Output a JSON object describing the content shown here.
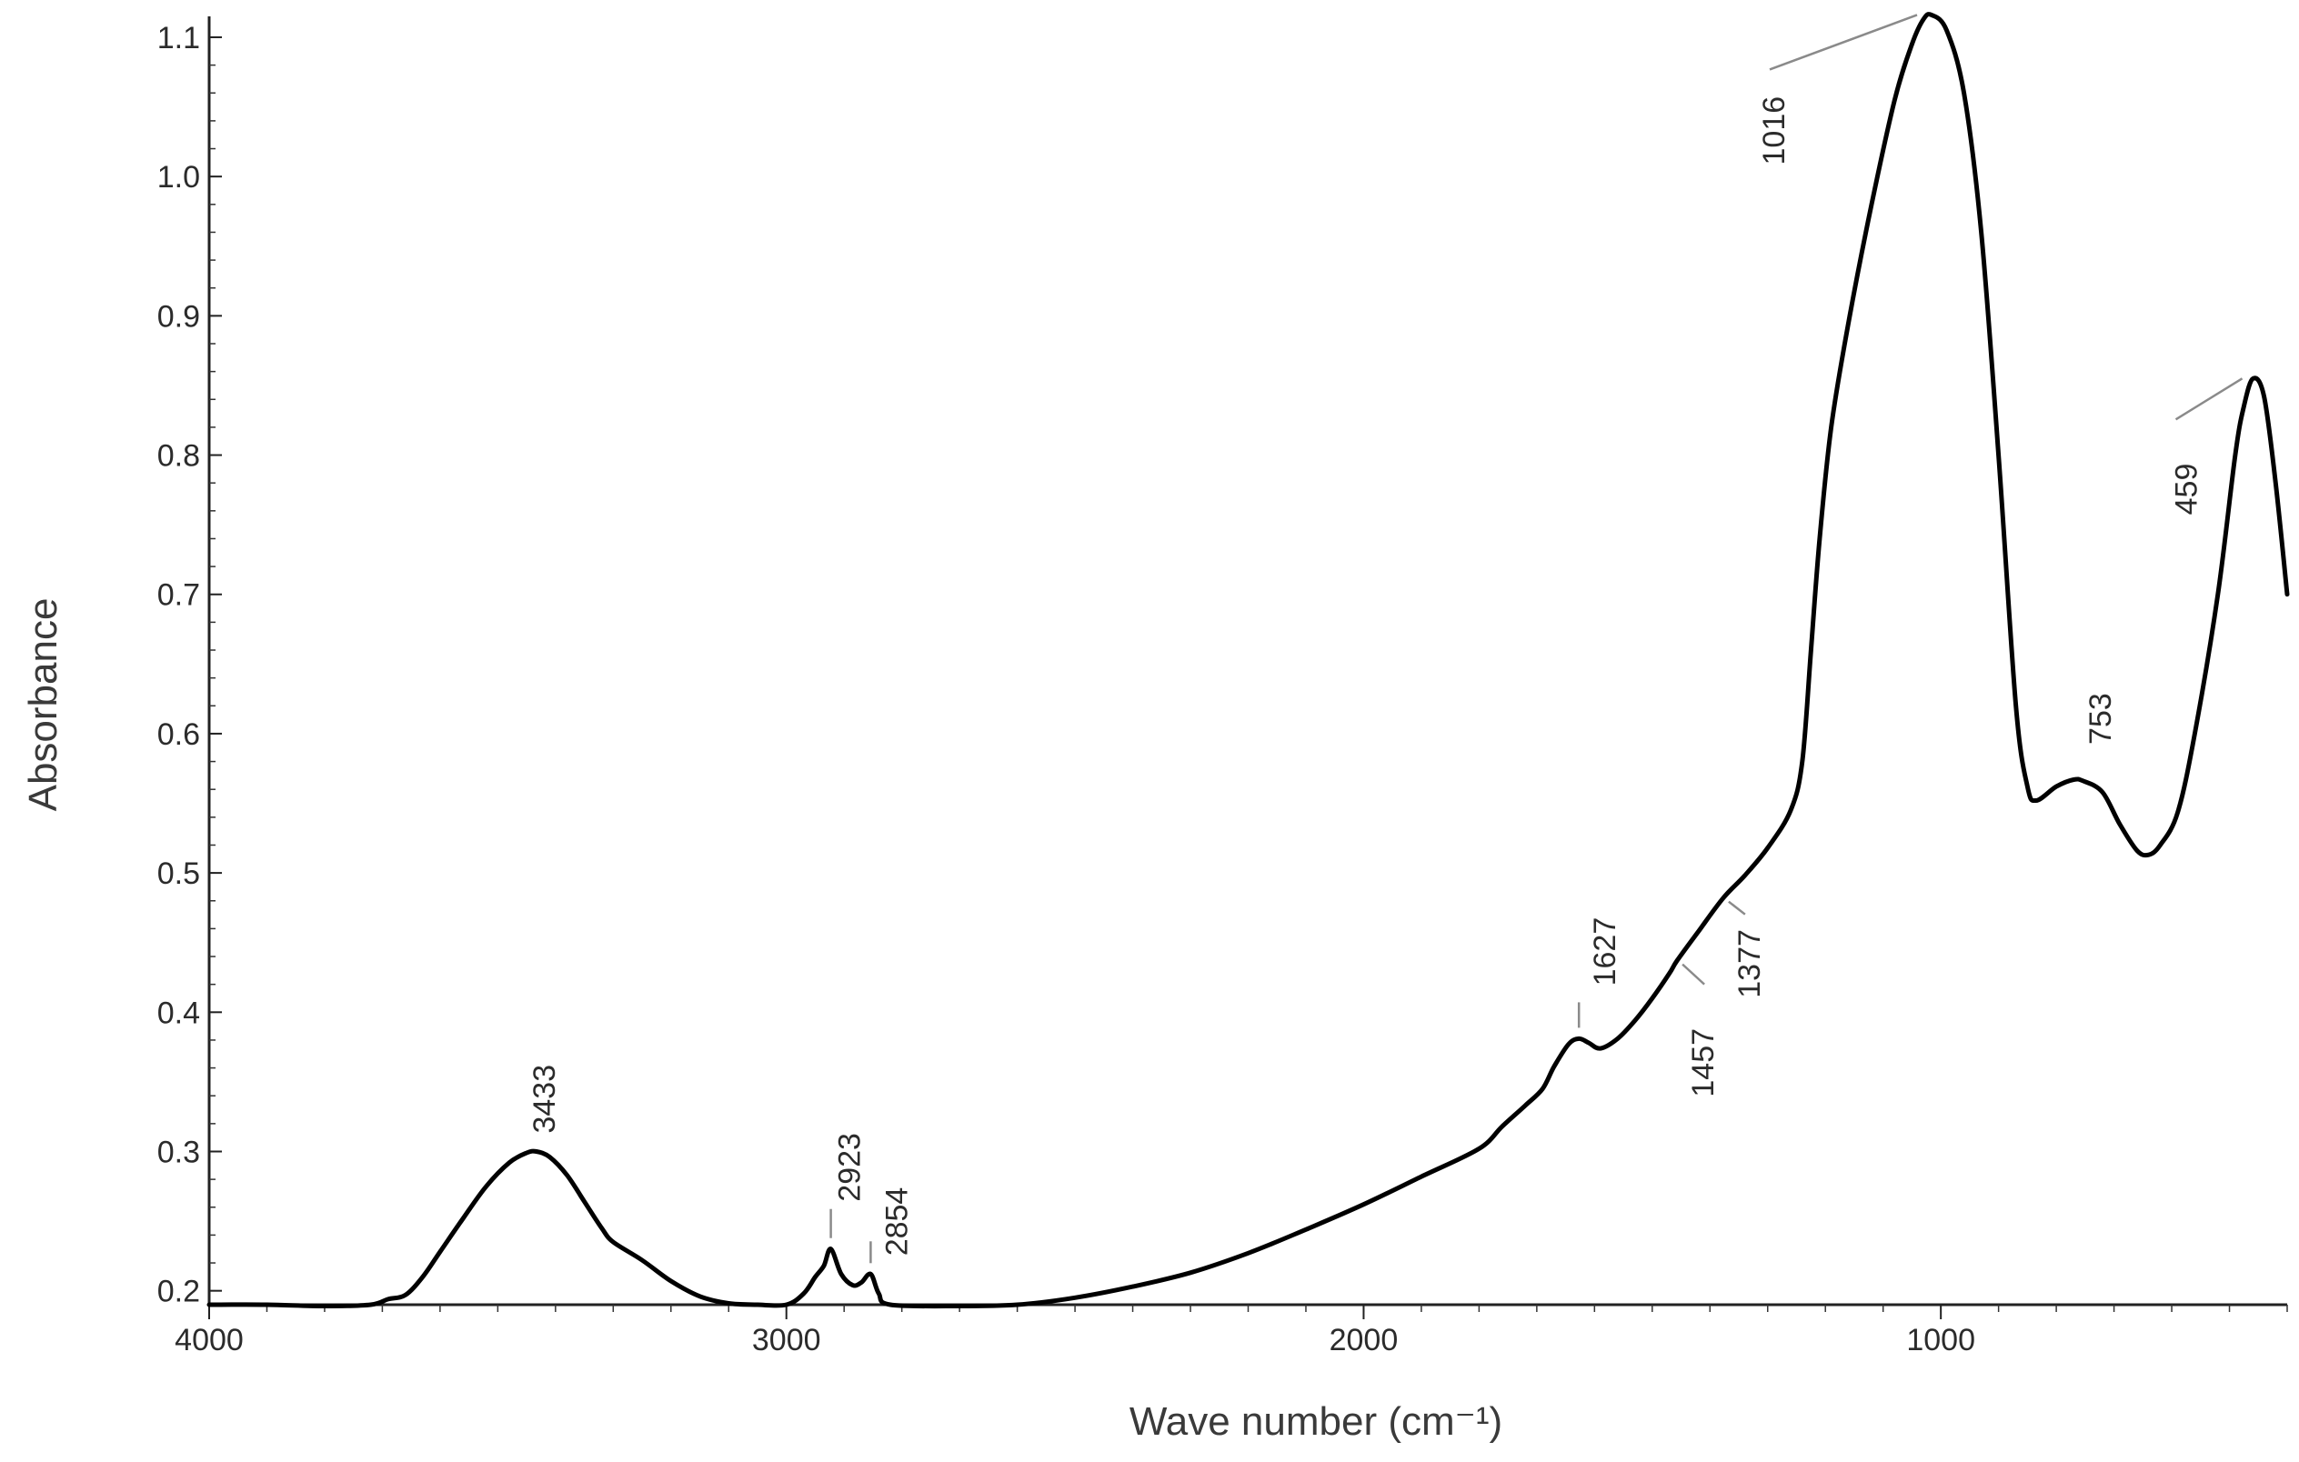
{
  "chart_data": {
    "type": "line",
    "title": "",
    "xlabel": "Wave number (cm⁻¹)",
    "ylabel": "Absorbance",
    "xlim": [
      4000,
      400
    ],
    "ylim": [
      0.19,
      1.115
    ],
    "x_reversed": true,
    "grid": false,
    "legend": "none",
    "x_ticks": [
      4000,
      3000,
      2000,
      1000
    ],
    "x_tick_labels": [
      "4000",
      "3000",
      "2000",
      "1000"
    ],
    "y_ticks": [
      0.2,
      0.3,
      0.4,
      0.5,
      0.6,
      0.7,
      0.8,
      0.9,
      1.0,
      1.1
    ],
    "y_tick_labels": [
      "0.2",
      "0.3",
      "0.4",
      "0.5",
      "0.6",
      "0.7",
      "0.8",
      "0.9",
      "1.0",
      "1.1"
    ],
    "series": [
      {
        "color": "#000000",
        "points": [
          [
            4000,
            0.19
          ],
          [
            3900,
            0.19
          ],
          [
            3800,
            0.189
          ],
          [
            3720,
            0.19
          ],
          [
            3690,
            0.194
          ],
          [
            3660,
            0.197
          ],
          [
            3630,
            0.21
          ],
          [
            3600,
            0.228
          ],
          [
            3560,
            0.252
          ],
          [
            3520,
            0.275
          ],
          [
            3480,
            0.292
          ],
          [
            3450,
            0.299
          ],
          [
            3433,
            0.3
          ],
          [
            3410,
            0.296
          ],
          [
            3380,
            0.283
          ],
          [
            3350,
            0.264
          ],
          [
            3320,
            0.245
          ],
          [
            3300,
            0.235
          ],
          [
            3250,
            0.222
          ],
          [
            3200,
            0.207
          ],
          [
            3150,
            0.196
          ],
          [
            3100,
            0.191
          ],
          [
            3050,
            0.19
          ],
          [
            3000,
            0.19
          ],
          [
            2970,
            0.198
          ],
          [
            2950,
            0.21
          ],
          [
            2935,
            0.218
          ],
          [
            2923,
            0.23
          ],
          [
            2905,
            0.212
          ],
          [
            2885,
            0.204
          ],
          [
            2870,
            0.206
          ],
          [
            2854,
            0.212
          ],
          [
            2840,
            0.198
          ],
          [
            2820,
            0.19
          ],
          [
            2700,
            0.189
          ],
          [
            2600,
            0.19
          ],
          [
            2500,
            0.195
          ],
          [
            2400,
            0.203
          ],
          [
            2300,
            0.213
          ],
          [
            2200,
            0.227
          ],
          [
            2100,
            0.244
          ],
          [
            2000,
            0.262
          ],
          [
            1900,
            0.282
          ],
          [
            1800,
            0.302
          ],
          [
            1760,
            0.318
          ],
          [
            1720,
            0.333
          ],
          [
            1690,
            0.345
          ],
          [
            1670,
            0.361
          ],
          [
            1645,
            0.377
          ],
          [
            1627,
            0.381
          ],
          [
            1610,
            0.378
          ],
          [
            1590,
            0.374
          ],
          [
            1560,
            0.381
          ],
          [
            1530,
            0.394
          ],
          [
            1500,
            0.41
          ],
          [
            1470,
            0.428
          ],
          [
            1457,
            0.437
          ],
          [
            1420,
            0.458
          ],
          [
            1377,
            0.482
          ],
          [
            1340,
            0.498
          ],
          [
            1300,
            0.518
          ],
          [
            1260,
            0.545
          ],
          [
            1240,
            0.58
          ],
          [
            1225,
            0.66
          ],
          [
            1210,
            0.74
          ],
          [
            1190,
            0.82
          ],
          [
            1160,
            0.895
          ],
          [
            1120,
            0.98
          ],
          [
            1080,
            1.055
          ],
          [
            1050,
            1.095
          ],
          [
            1030,
            1.113
          ],
          [
            1016,
            1.116
          ],
          [
            990,
            1.105
          ],
          [
            960,
            1.06
          ],
          [
            930,
            0.96
          ],
          [
            900,
            0.8
          ],
          [
            870,
            0.62
          ],
          [
            850,
            0.562
          ],
          [
            835,
            0.552
          ],
          [
            800,
            0.562
          ],
          [
            770,
            0.567
          ],
          [
            753,
            0.566
          ],
          [
            720,
            0.558
          ],
          [
            690,
            0.535
          ],
          [
            660,
            0.516
          ],
          [
            640,
            0.513
          ],
          [
            620,
            0.52
          ],
          [
            590,
            0.543
          ],
          [
            560,
            0.6
          ],
          [
            520,
            0.7
          ],
          [
            490,
            0.8
          ],
          [
            475,
            0.835
          ],
          [
            459,
            0.855
          ],
          [
            440,
            0.842
          ],
          [
            420,
            0.78
          ],
          [
            400,
            0.7
          ]
        ]
      }
    ],
    "annotations": [
      {
        "label": "3433",
        "x": 3433,
        "y": 0.3
      },
      {
        "label": "2923",
        "x": 2923,
        "y": 0.23
      },
      {
        "label": "2854",
        "x": 2854,
        "y": 0.212
      },
      {
        "label": "1627",
        "x": 1627,
        "y": 0.381
      },
      {
        "label": "1457",
        "x": 1457,
        "y": 0.437
      },
      {
        "label": "1377",
        "x": 1377,
        "y": 0.482
      },
      {
        "label": "1016",
        "x": 1016,
        "y": 1.116
      },
      {
        "label": "753",
        "x": 753,
        "y": 0.566
      },
      {
        "label": "459",
        "x": 459,
        "y": 0.855
      }
    ]
  }
}
